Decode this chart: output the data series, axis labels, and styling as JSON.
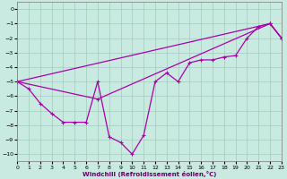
{
  "xlabel": "Windchill (Refroidissement éolien,°C)",
  "xlim": [
    0,
    23
  ],
  "ylim": [
    -10.5,
    0.5
  ],
  "xticks": [
    0,
    1,
    2,
    3,
    4,
    5,
    6,
    7,
    8,
    9,
    10,
    11,
    12,
    13,
    14,
    15,
    16,
    17,
    18,
    19,
    20,
    21,
    22,
    23
  ],
  "yticks": [
    0,
    -1,
    -2,
    -3,
    -4,
    -5,
    -6,
    -7,
    -8,
    -9,
    -10
  ],
  "bg_color": "#c8eae0",
  "grid_color": "#a0ccbc",
  "line_color": "#aa00aa",
  "curve1_x": [
    0,
    1,
    2,
    3,
    4,
    5,
    6,
    7,
    8,
    9,
    10,
    11,
    12,
    13,
    14,
    15,
    16,
    17,
    18,
    19,
    20,
    21,
    22,
    23
  ],
  "curve1_y": [
    -5.0,
    -5.5,
    -6.5,
    -7.2,
    -7.8,
    -7.8,
    -7.8,
    -5.0,
    -8.8,
    -9.2,
    -10.0,
    -8.7,
    -5.0,
    -4.4,
    -5.0,
    -3.7,
    -3.5,
    -3.5,
    -3.3,
    -3.2,
    -2.0,
    -1.2,
    -1.0,
    -2.0
  ],
  "curve2_x": [
    0,
    22,
    23
  ],
  "curve2_y": [
    -5.0,
    -1.0,
    -2.0
  ],
  "curve3_x": [
    0,
    7,
    22,
    23
  ],
  "curve3_y": [
    -5.0,
    -6.2,
    -1.0,
    -2.0
  ]
}
